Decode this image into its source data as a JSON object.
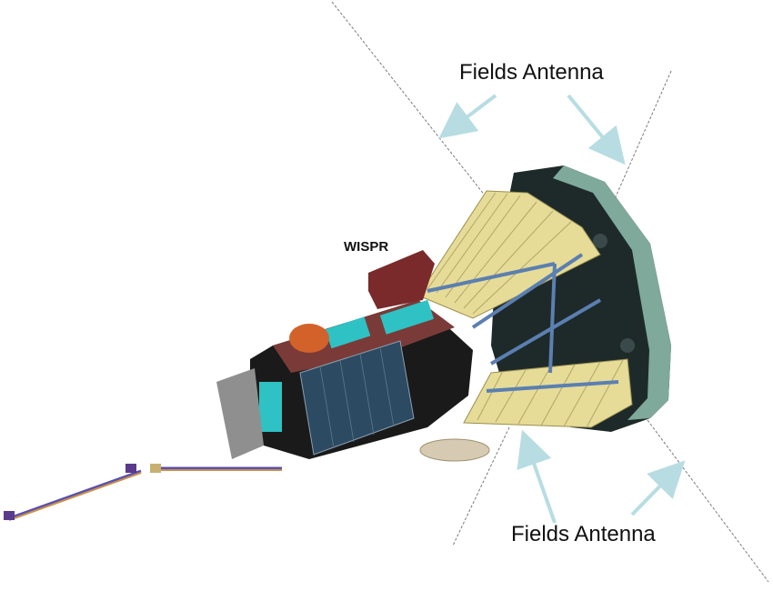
{
  "labels": {
    "fields_top": "Fields Antenna",
    "fields_bottom": "Fields Antenna",
    "wispr": "WISPR"
  },
  "colors": {
    "arrow": "#b7dde3",
    "antenna_line": "#7a7a7a",
    "heat_shield": "#7fa99a",
    "heat_shield_dark": "#1e2a2a",
    "solar_array": "#e6dc98",
    "body": "#1a1a1a",
    "body_top": "#7a3b38",
    "panel": "#2d4a63",
    "radiator": "#2ec2c4",
    "boom": "#c8914a",
    "dish": "#d6cbb2",
    "side_panel": "#8f8f8f"
  }
}
